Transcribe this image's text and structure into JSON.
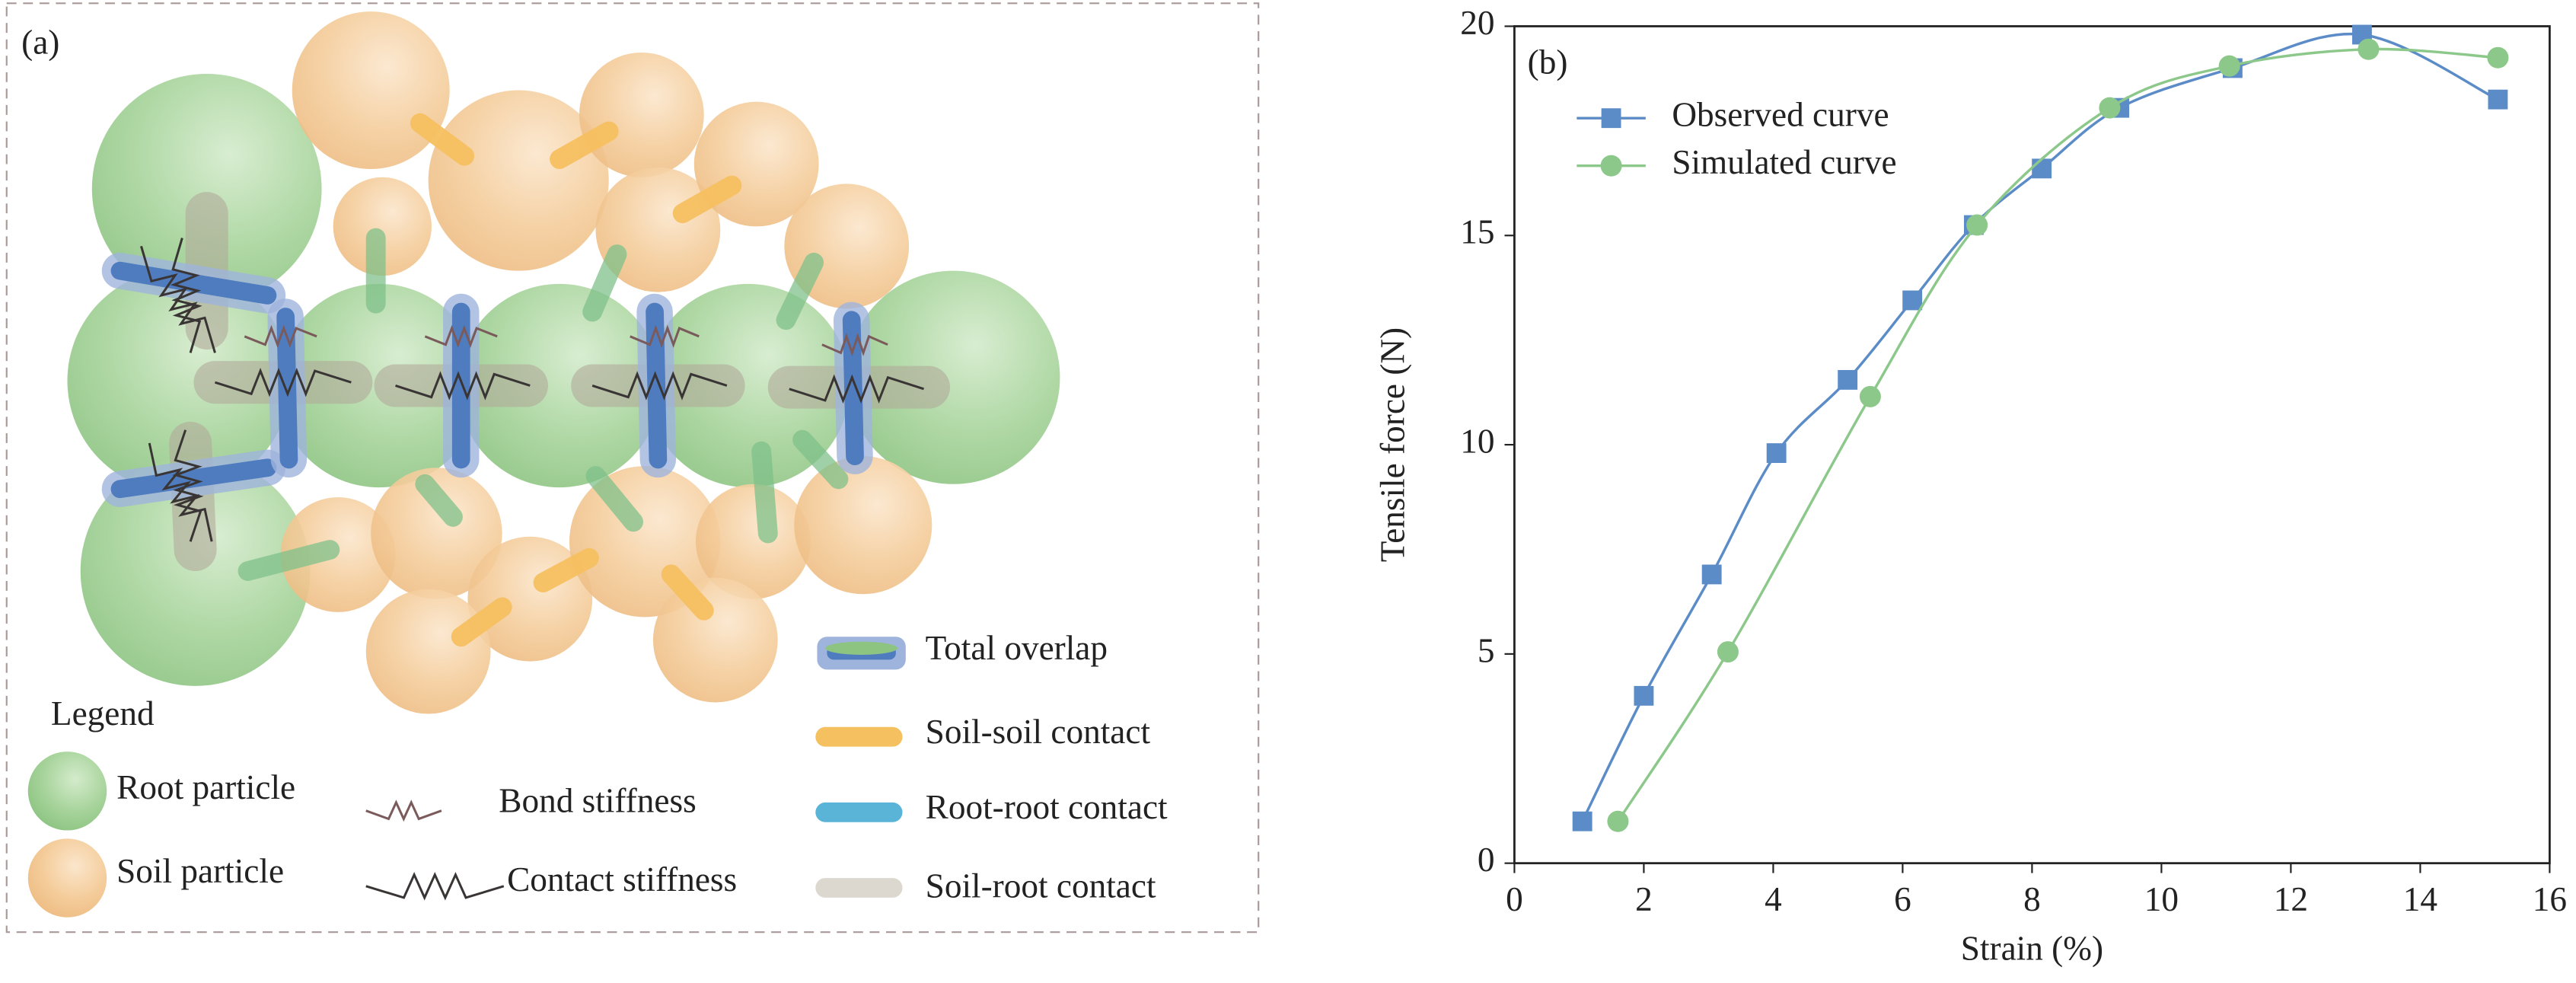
{
  "diagram": {
    "label": "(a)",
    "legend_title": "Legend",
    "items": {
      "root_particle": "Root particle",
      "soil_particle": "Soil particle",
      "bond_stiffness": "Bond stiffness",
      "contact_stiffness": "Contact stiffness",
      "total_overlap": "Total overlap",
      "soil_soil": "Soil-soil contact",
      "root_root": "Root-root contact",
      "soil_root": "Soil-root contact"
    }
  },
  "chart_data": {
    "type": "line",
    "label": "(b)",
    "x_label": "Strain (%)",
    "y_label": "Tensile force (N)",
    "xlim": [
      0,
      16
    ],
    "ylim": [
      0,
      20
    ],
    "xticks": [
      0,
      2,
      4,
      6,
      8,
      10,
      12,
      14,
      16
    ],
    "yticks": [
      0,
      5,
      10,
      15,
      20
    ],
    "legend": "upper left",
    "series": [
      {
        "name": "Observed curve",
        "color": "#5b8cc8",
        "marker": "square",
        "x": [
          1.05,
          2.0,
          3.05,
          4.05,
          5.15,
          6.15,
          7.1,
          8.15,
          9.35,
          11.1,
          13.1,
          15.2
        ],
        "values": [
          1.0,
          4.0,
          6.9,
          9.8,
          11.55,
          13.45,
          15.25,
          16.6,
          18.05,
          19.0,
          19.8,
          18.25
        ]
      },
      {
        "name": "Simulated curve",
        "color": "#8cc88a",
        "marker": "circle",
        "x": [
          1.6,
          3.3,
          5.5,
          7.15,
          9.2,
          11.05,
          13.2,
          15.2
        ],
        "values": [
          1.0,
          5.05,
          11.15,
          15.25,
          18.05,
          19.05,
          19.45,
          19.25
        ]
      }
    ]
  }
}
